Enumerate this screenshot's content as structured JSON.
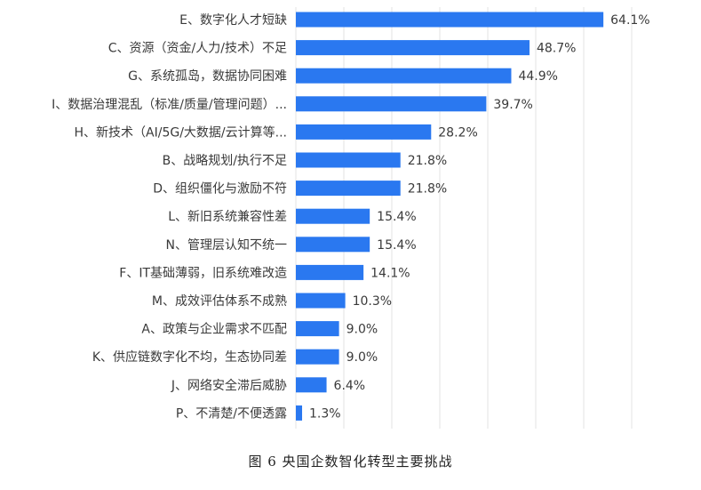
{
  "caption": "图 6 央国企数智化转型主要挑战",
  "chart_data": {
    "type": "bar",
    "orientation": "horizontal",
    "title": "",
    "xlabel": "",
    "ylabel": "",
    "xlim": [
      0,
      70
    ],
    "grid": "vertical",
    "legend": "none",
    "bar_color": "#2a78f0",
    "value_format": "percent_1dp",
    "categories": [
      "E、数字化人才短缺",
      "C、资源（资金/人力/技术）不足",
      "G、系统孤岛，数据协同困难",
      "I、数据治理混乱（标准/质量/管理问题）...",
      "H、新技术（AI/5G/大数据/云计算等...",
      "B、战略规划/执行不足",
      "D、组织僵化与激励不符",
      "L、新旧系统兼容性差",
      "N、管理层认知不统一",
      "F、IT基础薄弱，旧系统难改造",
      "M、成效评估体系不成熟",
      "A、政策与企业需求不匹配",
      "K、供应链数字化不均，生态协同差",
      "J、网络安全滞后威胁",
      "P、不清楚/不便透露"
    ],
    "values": [
      64.1,
      48.7,
      44.9,
      39.7,
      28.2,
      21.8,
      21.8,
      15.4,
      15.4,
      14.1,
      10.3,
      9.0,
      9.0,
      6.4,
      1.3
    ]
  }
}
